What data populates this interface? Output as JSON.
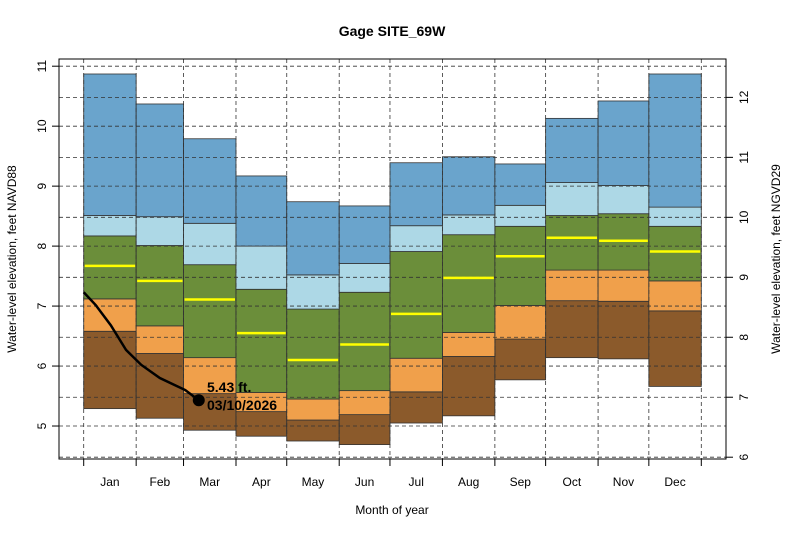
{
  "chart_data": {
    "type": "area",
    "title": "Gage SITE_69W",
    "xlabel": "Month of year",
    "ylabel": "Water-level elevation, feet NAVD88",
    "ylabel_right": "Water-level elevation, feet NGVD29",
    "categories": [
      "Jan",
      "Feb",
      "Mar",
      "Apr",
      "May",
      "Jun",
      "Jul",
      "Aug",
      "Sep",
      "Oct",
      "Nov",
      "Dec"
    ],
    "ylim": [
      4.45,
      11.12
    ],
    "yticks": [
      5,
      6,
      7,
      8,
      9,
      10,
      11
    ],
    "yticks_right": [
      6,
      7,
      8,
      9,
      10,
      11,
      12
    ],
    "right_axis_offset": 1.52,
    "grid": true,
    "bands": [
      {
        "key": "min",
        "color": "#8b5a2b",
        "values": [
          5.29,
          5.13,
          4.93,
          4.83,
          4.75,
          4.69,
          5.05,
          5.17,
          5.77,
          6.14,
          6.12,
          5.66
        ]
      },
      {
        "key": "p10",
        "color": "#8b5a2b",
        "values": [
          6.58,
          6.21,
          5.54,
          5.24,
          5.1,
          5.19,
          5.57,
          6.16,
          6.45,
          7.09,
          7.08,
          6.92
        ]
      },
      {
        "key": "p25",
        "color": "#f0a04b",
        "values": [
          7.12,
          6.67,
          6.14,
          5.56,
          5.45,
          5.59,
          6.13,
          6.56,
          7.01,
          7.6,
          7.6,
          7.42
        ]
      },
      {
        "key": "p75",
        "color": "#6b8e3a",
        "values": [
          8.17,
          8.01,
          7.69,
          7.28,
          6.95,
          7.23,
          7.91,
          8.19,
          8.33,
          8.51,
          8.54,
          8.33
        ]
      },
      {
        "key": "p90",
        "color": "#add8e6",
        "values": [
          8.51,
          8.49,
          8.38,
          8.0,
          7.52,
          7.71,
          8.34,
          8.52,
          8.68,
          9.06,
          9.01,
          8.65
        ]
      },
      {
        "key": "max",
        "color": "#6aa4cc",
        "values": [
          10.87,
          10.37,
          9.79,
          9.17,
          8.74,
          8.67,
          9.39,
          9.49,
          9.37,
          10.13,
          10.42,
          10.87
        ]
      }
    ],
    "median": {
      "color": "#ffff00",
      "values": [
        7.67,
        7.42,
        7.11,
        6.55,
        6.1,
        6.36,
        6.87,
        7.47,
        7.83,
        8.14,
        8.09,
        7.91
      ]
    },
    "current_year": {
      "color": "#000000",
      "day_of_year": [
        1,
        8,
        17,
        26,
        35,
        46,
        55,
        61,
        69
      ],
      "values": [
        7.23,
        7.02,
        6.68,
        6.27,
        6.02,
        5.8,
        5.68,
        5.6,
        5.43
      ]
    },
    "latest": {
      "value_label": "5.43 ft.",
      "date_label": "03/10/2026",
      "day_of_year": 69,
      "value": 5.43
    }
  }
}
